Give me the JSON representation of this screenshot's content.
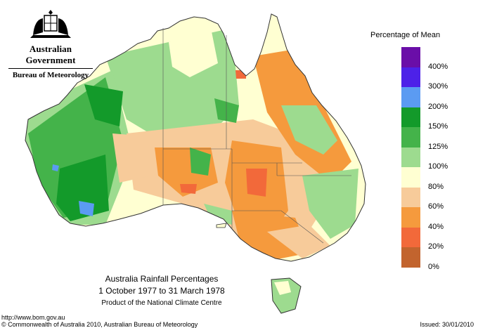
{
  "header": {
    "government": "Australian Government",
    "bureau": "Bureau of Meteorology"
  },
  "legend": {
    "title": "Percentage of Mean",
    "classes": [
      {
        "label": "400%",
        "color": "#6a0ea8"
      },
      {
        "label": "300%",
        "color": "#4d21e8"
      },
      {
        "label": "200%",
        "color": "#5b9bf2"
      },
      {
        "label": "150%",
        "color": "#139a2a"
      },
      {
        "label": "125%",
        "color": "#44b34a"
      },
      {
        "label": "100%",
        "color": "#9ddb8f"
      },
      {
        "label": "80%",
        "color": "#ffffd2"
      },
      {
        "label": "60%",
        "color": "#f7cb9a"
      },
      {
        "label": "40%",
        "color": "#f59a3d"
      },
      {
        "label": "20%",
        "color": "#f2693a"
      },
      {
        "label": "0%",
        "color": "#c2642e"
      }
    ]
  },
  "map": {
    "title": "Australia Rainfall Percentages",
    "period": "1 October 1977 to 31 March 1978",
    "product": "Product of the National Climate Centre"
  },
  "footer": {
    "url": "http://www.bom.gov.au",
    "copyright": "© Commonwealth of Australia 2010, Australian Bureau of Meteorology",
    "issued": "Issued: 30/01/2010"
  }
}
